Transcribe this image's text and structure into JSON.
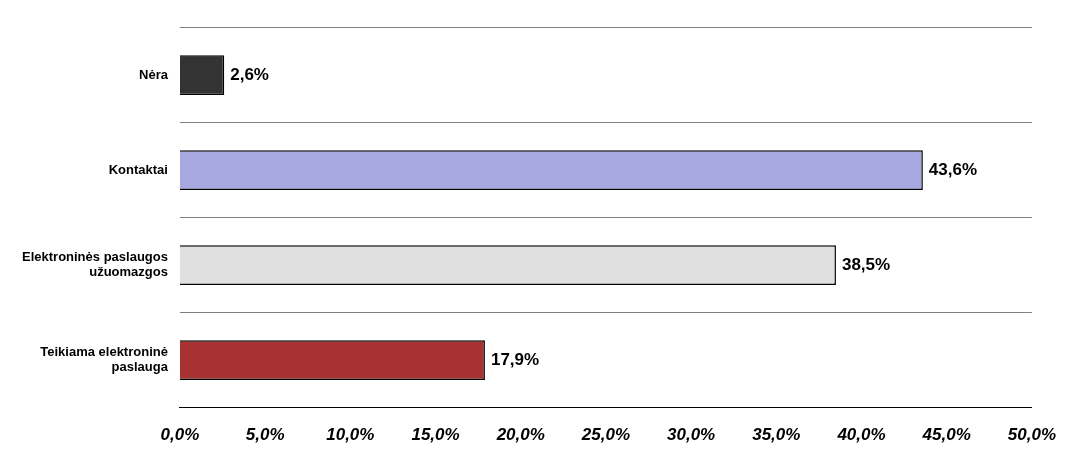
{
  "chart_data": {
    "type": "bar",
    "orientation": "horizontal",
    "categories": [
      "Nėra",
      "Kontaktai",
      "Elektroninės paslaugos užuomazgos",
      "Teikiama elektroninė paslauga"
    ],
    "values": [
      2.6,
      43.6,
      38.5,
      17.9
    ],
    "colors": [
      "#333333",
      "#a8a8e0",
      "#e0e0e0",
      "#a83232"
    ],
    "value_labels": [
      "2,6%",
      "43,6%",
      "38,5%",
      "17,9%"
    ],
    "xlim": [
      0,
      50
    ],
    "xticks": [
      {
        "value": 0,
        "label": "0,0%"
      },
      {
        "value": 5,
        "label": "5,0%"
      },
      {
        "value": 10,
        "label": "10,0%"
      },
      {
        "value": 15,
        "label": "15,0%"
      },
      {
        "value": 20,
        "label": "20,0%"
      },
      {
        "value": 25,
        "label": "25,0%"
      },
      {
        "value": 30,
        "label": "30,0%"
      },
      {
        "value": 35,
        "label": "35,0%"
      },
      {
        "value": 40,
        "label": "40,0%"
      },
      {
        "value": 45,
        "label": "45,0%"
      },
      {
        "value": 50,
        "label": "50,0%"
      }
    ],
    "grid": "y",
    "legend": false
  }
}
